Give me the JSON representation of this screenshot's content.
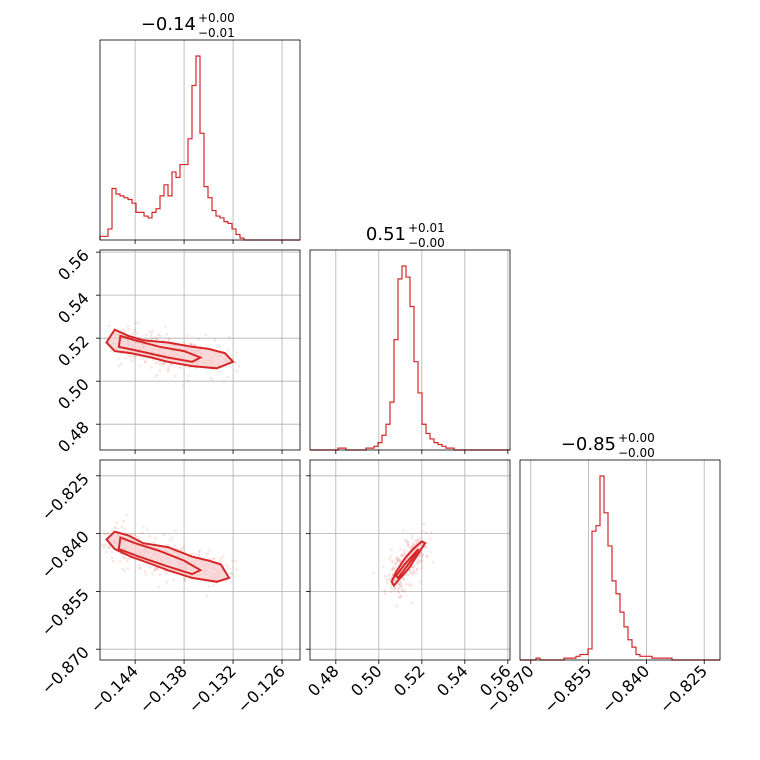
{
  "colors": {
    "series": "#d62728",
    "fill": "#f6c9c9",
    "grid": "#b0b0b0"
  },
  "chart_data": {
    "type": "corner",
    "grid": true,
    "parameters": [
      {
        "title_main": "−0.14",
        "title_sup": "+0.00",
        "title_sub": "−0.01",
        "range": [
          -0.1483,
          -0.1238
        ],
        "ticks": [
          -0.144,
          -0.138,
          -0.132,
          -0.126
        ],
        "tick_labels": [
          "−0.144",
          "−0.138",
          "−0.132",
          "−0.126"
        ],
        "hist": [
          0.02,
          0.02,
          0.06,
          0.28,
          0.25,
          0.24,
          0.23,
          0.22,
          0.2,
          0.15,
          0.15,
          0.13,
          0.12,
          0.15,
          0.17,
          0.24,
          0.3,
          0.24,
          0.37,
          0.34,
          0.41,
          0.41,
          0.55,
          0.84,
          1.0,
          0.58,
          0.29,
          0.23,
          0.16,
          0.13,
          0.12,
          0.1,
          0.09,
          0.06,
          0.03,
          0.01,
          0,
          0,
          0,
          0,
          0,
          0,
          0,
          0,
          0,
          0,
          0,
          0,
          0,
          0
        ]
      },
      {
        "title_main": "0.51",
        "title_sup": "+0.01",
        "title_sub": "−0.00",
        "range": [
          0.468,
          0.561
        ],
        "ticks": [
          0.48,
          0.5,
          0.52,
          0.54,
          0.56
        ],
        "tick_labels": [
          "0.48",
          "0.50",
          "0.52",
          "0.54",
          "0.56"
        ],
        "hist": [
          0,
          0,
          0,
          0,
          0,
          0,
          0,
          0.01,
          0.01,
          0,
          0,
          0,
          0,
          0,
          0.01,
          0.01,
          0.02,
          0.04,
          0.08,
          0.14,
          0.26,
          0.6,
          0.93,
          1.0,
          0.94,
          0.78,
          0.48,
          0.31,
          0.14,
          0.09,
          0.06,
          0.04,
          0.03,
          0.02,
          0.01,
          0.01,
          0,
          0,
          0,
          0,
          0,
          0,
          0,
          0,
          0,
          0,
          0,
          0,
          0,
          0
        ]
      },
      {
        "title_main": "−0.85",
        "title_sup": "+0.00",
        "title_sub": "−0.00",
        "range": [
          -0.8728,
          -0.8209
        ],
        "ticks": [
          -0.87,
          -0.855,
          -0.84,
          -0.825
        ],
        "tick_labels": [
          "−0.870",
          "−0.855",
          "−0.840",
          "−0.825"
        ],
        "hist": [
          0,
          0,
          0,
          0,
          0.01,
          0,
          0,
          0,
          0,
          0,
          0,
          0.01,
          0.01,
          0.01,
          0.02,
          0.03,
          0.03,
          0.06,
          0.7,
          0.73,
          1.0,
          0.8,
          0.62,
          0.43,
          0.36,
          0.26,
          0.18,
          0.11,
          0.07,
          0.03,
          0.02,
          0.02,
          0.02,
          0.01,
          0.01,
          0.01,
          0.01,
          0.01,
          0,
          0,
          0,
          0,
          0,
          0,
          0,
          0,
          0,
          0,
          0,
          0
        ]
      }
    ],
    "pairs": [
      {
        "row": 1,
        "col": 0,
        "contours": [
          {
            "level": "outer",
            "points": [
              [
                -0.1465,
                0.524
              ],
              [
                -0.1448,
                0.521
              ],
              [
                -0.143,
                0.519
              ],
              [
                -0.14,
                0.518
              ],
              [
                -0.137,
                0.516
              ],
              [
                -0.135,
                0.515
              ],
              [
                -0.133,
                0.513
              ],
              [
                -0.132,
                0.509
              ],
              [
                -0.134,
                0.506
              ],
              [
                -0.137,
                0.507
              ],
              [
                -0.14,
                0.509
              ],
              [
                -0.142,
                0.511
              ],
              [
                -0.1445,
                0.513
              ],
              [
                -0.1465,
                0.514
              ],
              [
                -0.1475,
                0.518
              ]
            ]
          },
          {
            "level": "inner",
            "points": [
              [
                -0.1458,
                0.521
              ],
              [
                -0.144,
                0.519
              ],
              [
                -0.141,
                0.516
              ],
              [
                -0.138,
                0.514
              ],
              [
                -0.136,
                0.511
              ],
              [
                -0.137,
                0.509
              ],
              [
                -0.14,
                0.511
              ],
              [
                -0.1435,
                0.514
              ],
              [
                -0.146,
                0.516
              ]
            ]
          }
        ]
      },
      {
        "row": 2,
        "col": 0,
        "contours": [
          {
            "level": "outer",
            "points": [
              [
                -0.1465,
                -0.8395
              ],
              [
                -0.1448,
                -0.8405
              ],
              [
                -0.143,
                -0.8425
              ],
              [
                -0.14,
                -0.8435
              ],
              [
                -0.137,
                -0.846
              ],
              [
                -0.135,
                -0.847
              ],
              [
                -0.1335,
                -0.848
              ],
              [
                -0.1325,
                -0.8515
              ],
              [
                -0.134,
                -0.8525
              ],
              [
                -0.137,
                -0.8515
              ],
              [
                -0.14,
                -0.8495
              ],
              [
                -0.1425,
                -0.8475
              ],
              [
                -0.1445,
                -0.846
              ],
              [
                -0.1465,
                -0.844
              ],
              [
                -0.1475,
                -0.8415
              ]
            ]
          },
          {
            "level": "inner",
            "points": [
              [
                -0.1458,
                -0.841
              ],
              [
                -0.144,
                -0.8425
              ],
              [
                -0.141,
                -0.8445
              ],
              [
                -0.138,
                -0.847
              ],
              [
                -0.136,
                -0.8495
              ],
              [
                -0.137,
                -0.8505
              ],
              [
                -0.14,
                -0.8485
              ],
              [
                -0.1435,
                -0.846
              ],
              [
                -0.146,
                -0.844
              ]
            ]
          }
        ]
      },
      {
        "row": 2,
        "col": 1,
        "contours": [
          {
            "level": "outer",
            "points": [
              [
                0.506,
                -0.8525
              ],
              [
                0.508,
                -0.85
              ],
              [
                0.512,
                -0.8465
              ],
              [
                0.516,
                -0.844
              ],
              [
                0.52,
                -0.842
              ],
              [
                0.5215,
                -0.8425
              ],
              [
                0.518,
                -0.8455
              ],
              [
                0.514,
                -0.849
              ],
              [
                0.51,
                -0.8515
              ],
              [
                0.507,
                -0.8535
              ]
            ]
          },
          {
            "level": "inner",
            "points": [
              [
                0.508,
                -0.851
              ],
              [
                0.512,
                -0.848
              ],
              [
                0.516,
                -0.8455
              ],
              [
                0.5185,
                -0.844
              ],
              [
                0.517,
                -0.8455
              ],
              [
                0.513,
                -0.8485
              ],
              [
                0.509,
                -0.8515
              ]
            ]
          }
        ]
      }
    ]
  }
}
